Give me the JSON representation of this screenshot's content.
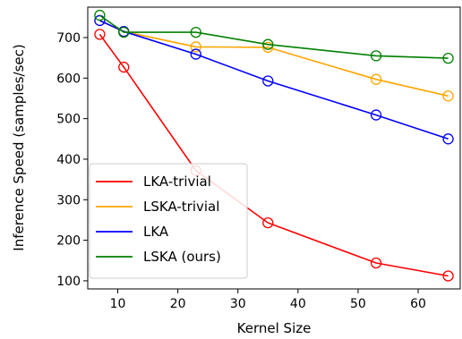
{
  "chart_data": {
    "type": "line",
    "title": "",
    "xlabel": "Kernel Size",
    "ylabel": "Inference Speed (samples/sec)",
    "x": [
      7,
      11,
      23,
      35,
      53,
      65
    ],
    "xlim": [
      5,
      67
    ],
    "ylim": [
      80,
      775
    ],
    "xticks": [
      10,
      20,
      30,
      40,
      50,
      60
    ],
    "yticks": [
      100,
      200,
      300,
      400,
      500,
      600,
      700
    ],
    "grid": false,
    "legend_position": "lower-left",
    "series": [
      {
        "name": "LKA-trivial",
        "color": "#ff0000",
        "values": [
          708,
          627,
          372,
          243,
          144,
          112
        ]
      },
      {
        "name": "LSKA-trivial",
        "color": "#ffa500",
        "values": [
          742,
          715,
          677,
          676,
          597,
          556
        ]
      },
      {
        "name": "LKA",
        "color": "#0000ff",
        "values": [
          742,
          715,
          659,
          593,
          509,
          450
        ]
      },
      {
        "name": "LSKA (ours)",
        "color": "#008000",
        "values": [
          755,
          713,
          713,
          683,
          655,
          649
        ]
      }
    ]
  }
}
